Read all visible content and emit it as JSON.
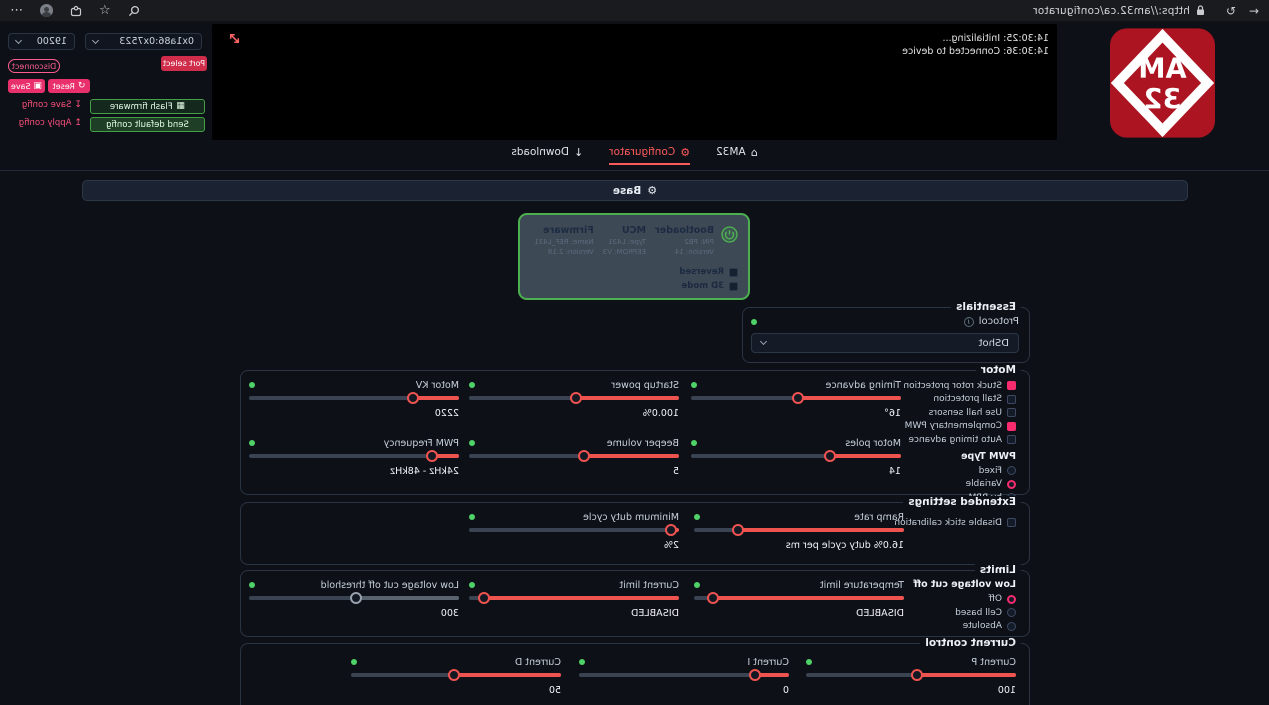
{
  "browser": {
    "url": "https://am32.ca/configurator"
  },
  "glyphs": {
    "back": "←",
    "reload": "↻",
    "menu": "⋯",
    "star": "☆",
    "home": "⌂",
    "gear": "⚙",
    "download": "↓",
    "flash": "▦",
    "reset": "↺",
    "save": "▣",
    "save_config": "↧",
    "apply_config": "↥",
    "info": "i"
  },
  "logo": {
    "line1": "AM",
    "line2": "32"
  },
  "log": {
    "lines": [
      "14:30:25: Initializing...",
      "14:30:36: Connected to device"
    ]
  },
  "toolbar": {
    "device_select": "0x1a86:0x7523",
    "baud_select": "19200",
    "port_select": "Port select",
    "disconnect": "Disconnect",
    "reset": "Reset",
    "save": "Save",
    "flash_firmware": "Flash firmware",
    "save_config": "Save config",
    "send_default_config": "Send default config",
    "apply_config": "Apply config"
  },
  "nav": {
    "tabs": [
      {
        "label": "AM32",
        "active": false
      },
      {
        "label": "Configurator",
        "active": true
      },
      {
        "label": "Downloads",
        "active": false
      }
    ]
  },
  "base_bar": {
    "label": "Base"
  },
  "device_card": {
    "columns": [
      {
        "title": "Bootloader",
        "line1": "PIN: PB2",
        "line2": "Version: 14"
      },
      {
        "title": "MCU",
        "line1": "Type: L431",
        "line2": "EEPROM: V3"
      },
      {
        "title": "Firmware",
        "line1": "Name: REF_L431",
        "line2": "Version: 2.18"
      }
    ],
    "toggles": [
      {
        "label": "Reversed",
        "checked": false
      },
      {
        "label": "3D mode",
        "checked": false
      }
    ]
  },
  "essentials": {
    "title": "Essentials",
    "protocol_label": "Protocol",
    "protocol_value": "DShot"
  },
  "motor": {
    "title": "Motor",
    "checkboxes": [
      {
        "label": "Stuck rotor protection",
        "checked": true
      },
      {
        "label": "Stall protection",
        "checked": false
      },
      {
        "label": "Use hall sensors",
        "checked": false
      },
      {
        "label": "Complementary PWM",
        "checked": true
      },
      {
        "label": "Auto timing advance",
        "checked": false
      }
    ],
    "pwm_type_label": "PWM Type",
    "pwm_options": [
      {
        "label": "Fixed",
        "selected": false
      },
      {
        "label": "Variable",
        "selected": true
      },
      {
        "label": "by RPM",
        "selected": false
      }
    ],
    "sliders": [
      {
        "label": "Timing advance",
        "value": "16°",
        "percent": 49
      },
      {
        "label": "Startup power",
        "value": "100.0%",
        "percent": 49
      },
      {
        "label": "Motor KV",
        "value": "2220",
        "percent": 22
      },
      {
        "label": "Motor poles",
        "value": "14",
        "percent": 34
      },
      {
        "label": "Beeper volume",
        "value": "5",
        "percent": 45
      },
      {
        "label": "PWM Frequency",
        "value": "24kHz - 48kHz",
        "percent": 13
      }
    ]
  },
  "extended": {
    "title": "Extended settings",
    "checkboxes": [
      {
        "label": "Disable stick calibration",
        "checked": false
      }
    ],
    "sliders": [
      {
        "label": "Ramp rate",
        "value": "16.0% duty cycle per ms",
        "percent": 79
      },
      {
        "label": "Minimum duty cycle",
        "value": "2%",
        "percent": 4
      }
    ]
  },
  "limits": {
    "title": "Limits",
    "lvc_label": "Low voltage cut off",
    "lvc_options": [
      {
        "label": "Off",
        "selected": true
      },
      {
        "label": "Cell based",
        "selected": false
      },
      {
        "label": "Absolute",
        "selected": false
      }
    ],
    "sliders": [
      {
        "label": "Temperature limit",
        "value": "DISABLED",
        "percent": 91
      },
      {
        "label": "Current limit",
        "value": "DISABLED",
        "percent": 93
      },
      {
        "label": "Low voltage cut off threshold",
        "value": "300",
        "percent": 49,
        "disabled": true
      }
    ]
  },
  "current_control": {
    "title": "Current control",
    "sliders": [
      {
        "label": "Current P",
        "value": "100",
        "percent": 47
      },
      {
        "label": "Current I",
        "value": "0",
        "percent": 16
      },
      {
        "label": "Current D",
        "value": "50",
        "percent": 51
      }
    ]
  },
  "colors": {
    "accent_red": "#ef5350",
    "accent_pink": "#f72b6e",
    "accent_green": "#4caf50",
    "nav_active": "#ff5a5a",
    "page_bg": "#0d1117"
  }
}
